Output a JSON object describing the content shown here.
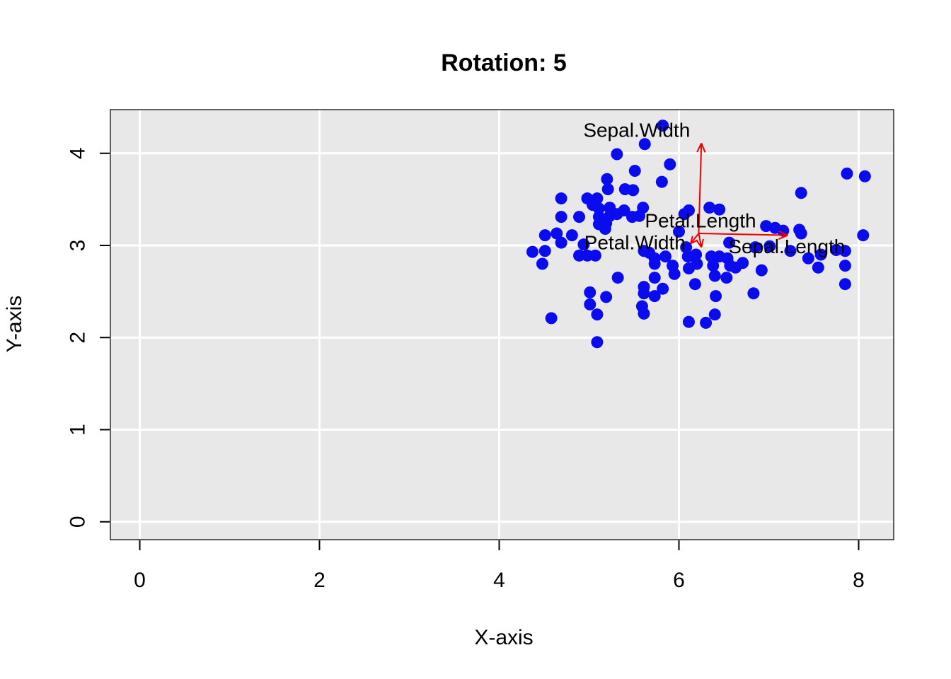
{
  "chart_data": {
    "type": "scatter",
    "title": "Rotation: 5",
    "xlabel": "X-axis",
    "ylabel": "Y-axis",
    "xlim": [
      -0.327,
      8.39
    ],
    "ylim": [
      -0.194,
      4.474
    ],
    "xticks": [
      "0",
      "2",
      "4",
      "6",
      "8"
    ],
    "xtick_values": [
      0,
      2,
      4,
      6,
      8
    ],
    "yticks": [
      "0",
      "1",
      "2",
      "3",
      "4"
    ],
    "ytick_values": [
      0,
      1,
      2,
      3,
      4
    ],
    "grid": true,
    "legend": "none",
    "plot_bg": "#e8e8e8",
    "grid_color": "#ffffff",
    "border_color": "#2b2b2b",
    "tick_color": "#000000",
    "point_color": "#0b0bf0",
    "arrow_color": "#ee0000",
    "points": [
      [
        5.31,
        3.99
      ],
      [
        5.62,
        4.1
      ],
      [
        5.82,
        4.3
      ],
      [
        5.9,
        3.88
      ],
      [
        5.51,
        3.81
      ],
      [
        5.2,
        3.72
      ],
      [
        5.21,
        3.61
      ],
      [
        5.81,
        3.69
      ],
      [
        5.4,
        3.61
      ],
      [
        5.49,
        3.6
      ],
      [
        4.69,
        3.51
      ],
      [
        4.98,
        3.51
      ],
      [
        5.09,
        3.51
      ],
      [
        4.69,
        3.31
      ],
      [
        4.89,
        3.31
      ],
      [
        5.11,
        3.4
      ],
      [
        5.11,
        3.31
      ],
      [
        5.31,
        3.34
      ],
      [
        5.19,
        3.24
      ],
      [
        5.11,
        3.23
      ],
      [
        5.48,
        3.31
      ],
      [
        5.04,
        3.44
      ],
      [
        5.23,
        3.41
      ],
      [
        5.23,
        3.32
      ],
      [
        5.39,
        3.38
      ],
      [
        5.56,
        3.32
      ],
      [
        5.6,
        3.41
      ],
      [
        6.11,
        3.38
      ],
      [
        6.06,
        3.34
      ],
      [
        6.0,
        3.15
      ],
      [
        4.51,
        3.11
      ],
      [
        4.64,
        3.13
      ],
      [
        4.81,
        3.11
      ],
      [
        5.18,
        3.18
      ],
      [
        4.37,
        2.93
      ],
      [
        4.51,
        2.94
      ],
      [
        4.48,
        2.8
      ],
      [
        4.69,
        3.03
      ],
      [
        4.89,
        2.89
      ],
      [
        4.98,
        2.89
      ],
      [
        5.07,
        2.89
      ],
      [
        4.94,
        3.01
      ],
      [
        5.32,
        2.65
      ],
      [
        5.01,
        2.49
      ],
      [
        5.19,
        2.44
      ],
      [
        5.01,
        2.36
      ],
      [
        5.09,
        2.25
      ],
      [
        4.58,
        2.21
      ],
      [
        5.09,
        1.95
      ],
      [
        5.73,
        2.86
      ],
      [
        5.85,
        2.88
      ],
      [
        5.73,
        2.8
      ],
      [
        5.93,
        2.78
      ],
      [
        5.95,
        2.69
      ],
      [
        5.73,
        2.65
      ],
      [
        5.61,
        2.55
      ],
      [
        5.61,
        2.48
      ],
      [
        5.73,
        2.45
      ],
      [
        5.82,
        2.53
      ],
      [
        5.59,
        2.34
      ],
      [
        5.61,
        2.26
      ],
      [
        5.67,
        2.92
      ],
      [
        5.61,
        2.94
      ],
      [
        6.08,
        2.98
      ],
      [
        6.1,
        2.88
      ],
      [
        6.19,
        2.9
      ],
      [
        6.2,
        2.8
      ],
      [
        6.11,
        2.75
      ],
      [
        6.18,
        2.58
      ],
      [
        6.11,
        2.17
      ],
      [
        6.3,
        2.16
      ],
      [
        6.36,
        2.88
      ],
      [
        6.45,
        2.88
      ],
      [
        6.54,
        2.86
      ],
      [
        6.38,
        2.78
      ],
      [
        6.57,
        2.78
      ],
      [
        6.63,
        2.76
      ],
      [
        6.71,
        2.81
      ],
      [
        6.4,
        2.67
      ],
      [
        6.53,
        2.65
      ],
      [
        6.92,
        2.73
      ],
      [
        6.83,
        2.48
      ],
      [
        6.41,
        2.45
      ],
      [
        6.4,
        2.25
      ],
      [
        6.56,
        3.03
      ],
      [
        6.85,
        2.98
      ],
      [
        7.01,
        2.99
      ],
      [
        7.44,
        2.86
      ],
      [
        7.55,
        2.76
      ],
      [
        7.85,
        2.78
      ],
      [
        7.85,
        2.58
      ],
      [
        7.24,
        2.94
      ],
      [
        7.85,
        2.94
      ],
      [
        7.75,
        2.95
      ],
      [
        7.58,
        2.9
      ],
      [
        8.05,
        3.11
      ],
      [
        7.36,
        3.13
      ],
      [
        7.87,
        3.78
      ],
      [
        8.07,
        3.75
      ],
      [
        7.36,
        3.57
      ],
      [
        6.45,
        3.39
      ],
      [
        6.34,
        3.41
      ],
      [
        7.07,
        3.19
      ],
      [
        7.16,
        3.16
      ],
      [
        6.97,
        3.21
      ],
      [
        7.34,
        3.17
      ]
    ],
    "vectors": [
      {
        "label": "Sepal.Width",
        "from": [
          6.22,
          3.13
        ],
        "to": [
          6.25,
          4.11
        ],
        "label_at": [
          5.53,
          4.25
        ]
      },
      {
        "label": "Sepal.Length",
        "from": [
          6.22,
          3.13
        ],
        "to": [
          7.21,
          3.11
        ],
        "label_at": [
          7.2,
          2.99
        ]
      },
      {
        "label": "Petal.Length",
        "from": [
          6.22,
          3.13
        ],
        "to": [
          6.25,
          2.98
        ],
        "label_at": [
          6.24,
          3.27
        ]
      },
      {
        "label": "Petal.Width",
        "from": [
          6.22,
          3.13
        ],
        "to": [
          6.13,
          3.02
        ],
        "label_at": [
          5.51,
          3.03
        ]
      }
    ]
  }
}
